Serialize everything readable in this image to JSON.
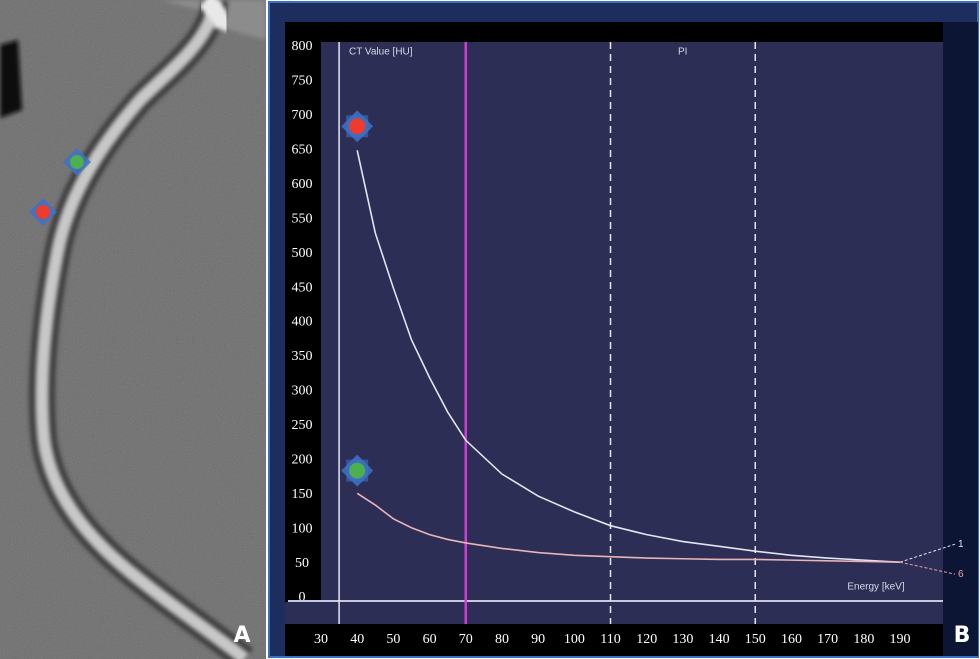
{
  "chart_data": {
    "type": "line",
    "panel_labels": [
      "A",
      "B"
    ],
    "y_label": "CT Value [HU]",
    "x_label": "Energy [keV]",
    "region_label": "PI",
    "xlim": [
      30,
      190
    ],
    "ylim": [
      0,
      800
    ],
    "xticks": [
      30,
      40,
      50,
      60,
      70,
      80,
      90,
      100,
      110,
      120,
      130,
      140,
      150,
      160,
      170,
      180,
      190
    ],
    "yticks": [
      0,
      50,
      100,
      150,
      200,
      250,
      300,
      350,
      400,
      450,
      500,
      550,
      600,
      650,
      700,
      750,
      800
    ],
    "vlines": [
      {
        "value": 35,
        "color": "#e6e6ee",
        "style": "solid"
      },
      {
        "value": 70,
        "color": "#d23cd2",
        "style": "solid"
      },
      {
        "value": 110,
        "color": "#e6e6ee",
        "style": "dashed"
      },
      {
        "value": 150,
        "color": "#e6e6ee",
        "style": "dashed"
      }
    ],
    "x": [
      40,
      45,
      50,
      55,
      60,
      65,
      70,
      80,
      90,
      100,
      110,
      120,
      130,
      140,
      150,
      160,
      170,
      180,
      190
    ],
    "series": [
      {
        "name": "1",
        "color": "#e4e4f0",
        "label_color": "#e4e4f0",
        "marker_color": "#ef3b2c",
        "marker_value": 685,
        "values": [
          650,
          530,
          450,
          375,
          320,
          270,
          229,
          180,
          148,
          125,
          105,
          92,
          82,
          75,
          68,
          62,
          58,
          55,
          52
        ]
      },
      {
        "name": "6",
        "color": "#e8b4b8",
        "label_color": "#f0a0a0",
        "marker_color": "#4caf50",
        "marker_value": 185,
        "values": [
          152,
          135,
          115,
          102,
          92,
          85,
          80,
          72,
          66,
          62,
          60,
          58,
          57,
          56,
          56,
          55,
          54,
          53,
          52
        ]
      }
    ]
  }
}
